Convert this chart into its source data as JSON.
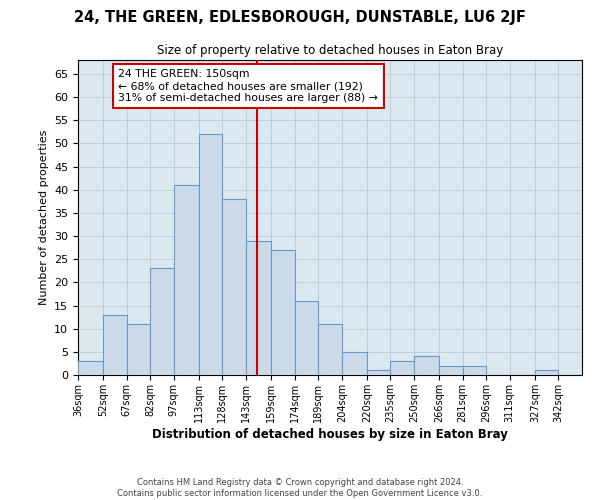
{
  "title": "24, THE GREEN, EDLESBOROUGH, DUNSTABLE, LU6 2JF",
  "subtitle": "Size of property relative to detached houses in Eaton Bray",
  "xlabel": "Distribution of detached houses by size in Eaton Bray",
  "ylabel": "Number of detached properties",
  "footer_line1": "Contains HM Land Registry data © Crown copyright and database right 2024.",
  "footer_line2": "Contains public sector information licensed under the Open Government Licence v3.0.",
  "bin_labels": [
    "36sqm",
    "52sqm",
    "67sqm",
    "82sqm",
    "97sqm",
    "113sqm",
    "128sqm",
    "143sqm",
    "159sqm",
    "174sqm",
    "189sqm",
    "204sqm",
    "220sqm",
    "235sqm",
    "250sqm",
    "266sqm",
    "281sqm",
    "296sqm",
    "311sqm",
    "327sqm",
    "342sqm"
  ],
  "bin_edges": [
    36,
    52,
    67,
    82,
    97,
    113,
    128,
    143,
    159,
    174,
    189,
    204,
    220,
    235,
    250,
    266,
    281,
    296,
    311,
    327,
    342
  ],
  "bar_heights": [
    3,
    13,
    11,
    23,
    41,
    52,
    38,
    29,
    27,
    16,
    11,
    5,
    1,
    3,
    4,
    2,
    2,
    0,
    0,
    1
  ],
  "bar_color": "#ccd9e8",
  "bar_edgecolor": "#6699cc",
  "ylim": [
    0,
    68
  ],
  "yticks": [
    0,
    5,
    10,
    15,
    20,
    25,
    30,
    35,
    40,
    45,
    50,
    55,
    60,
    65
  ],
  "reference_line_x": 150,
  "reference_line_color": "#cc0000",
  "annotation_line1": "24 THE GREEN: 150sqm",
  "annotation_line2": "← 68% of detached houses are smaller (192)",
  "annotation_line3": "31% of semi-detached houses are larger (88) →",
  "annotation_box_edgecolor": "#cc0000",
  "annotation_box_facecolor": "#ffffff",
  "ax_facecolor": "#dce8f0",
  "background_color": "#ffffff",
  "grid_color": "#b8ccd8"
}
